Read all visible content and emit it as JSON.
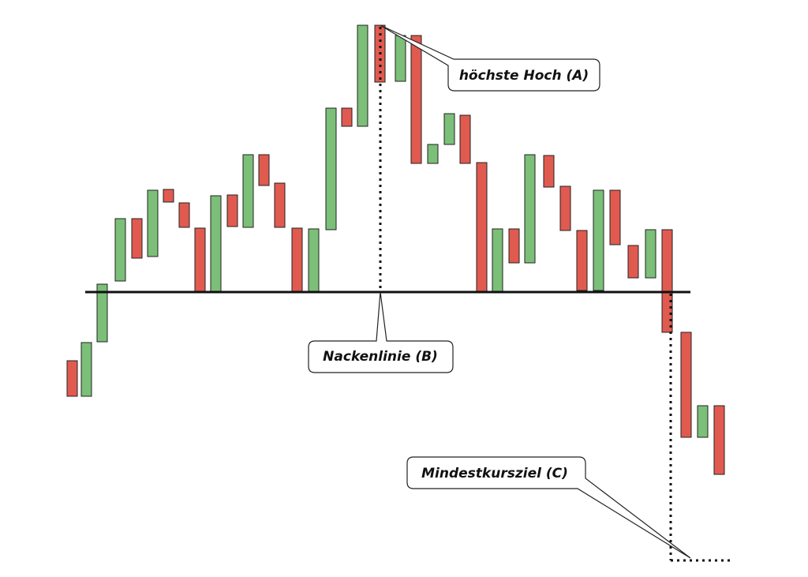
{
  "callouts": {
    "high": "höchste Hoch (A)",
    "neckline": "Nackenlinie (B)",
    "target": "Mindestkursziel (C)"
  }
}
